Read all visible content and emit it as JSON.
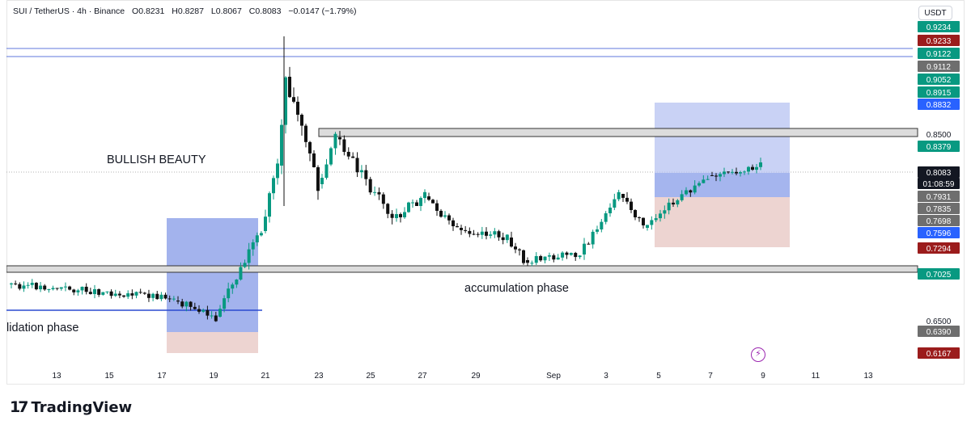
{
  "header": {
    "symbol": "SUI / TetherUS · 4h · Binance",
    "open": "O0.8231",
    "high": "H0.8287",
    "low": "L0.8067",
    "close": "C0.8083",
    "change": "−0.0147 (−1.79%)"
  },
  "currency_button": "USDT",
  "annotations": {
    "bullish": "BULLISH BEAUTY",
    "accumulation": "accumulation phase",
    "consolidation": "lidation phase"
  },
  "x_axis_labels": [
    "13",
    "15",
    "17",
    "19",
    "21",
    "23",
    "25",
    "27",
    "29",
    "Sep",
    "3",
    "5",
    "7",
    "9",
    "11",
    "13"
  ],
  "price_labels": [
    {
      "text": "0.9234",
      "style": "green"
    },
    {
      "text": "0.9233",
      "style": "red"
    },
    {
      "text": "0.9122",
      "style": "green"
    },
    {
      "text": "0.9112",
      "style": "gray"
    },
    {
      "text": "0.9052",
      "style": "green"
    },
    {
      "text": "0.8915",
      "style": "green"
    },
    {
      "text": "0.8832",
      "style": "blue"
    },
    {
      "text": "0.8500",
      "style": "plain"
    },
    {
      "text": "0.8379",
      "style": "green"
    },
    {
      "text": "0.8083",
      "style": "black"
    },
    {
      "text": "01:08:59",
      "style": "black"
    },
    {
      "text": "0.7931",
      "style": "gray"
    },
    {
      "text": "0.7835",
      "style": "gray"
    },
    {
      "text": "0.7698",
      "style": "gray"
    },
    {
      "text": "0.7596",
      "style": "blue"
    },
    {
      "text": "0.7294",
      "style": "red"
    },
    {
      "text": "0.7025",
      "style": "green"
    },
    {
      "text": "0.6500",
      "style": "plain"
    },
    {
      "text": "0.6390",
      "style": "gray"
    },
    {
      "text": "0.6167",
      "style": "red"
    }
  ],
  "logo": {
    "mark": "17",
    "word": "TradingView"
  },
  "colors": {
    "up": "#089981",
    "down": "#111111",
    "blue_box": "#7c93e6",
    "red_box": "#e8c9c6",
    "line": "#2a4ad0",
    "label_green": "#089981",
    "label_red": "#9b1c1c",
    "label_gray": "#6e6e6e",
    "label_blue": "#2962ff",
    "label_black": "#131722"
  },
  "icons": {
    "lightning": "lightning-icon"
  }
}
